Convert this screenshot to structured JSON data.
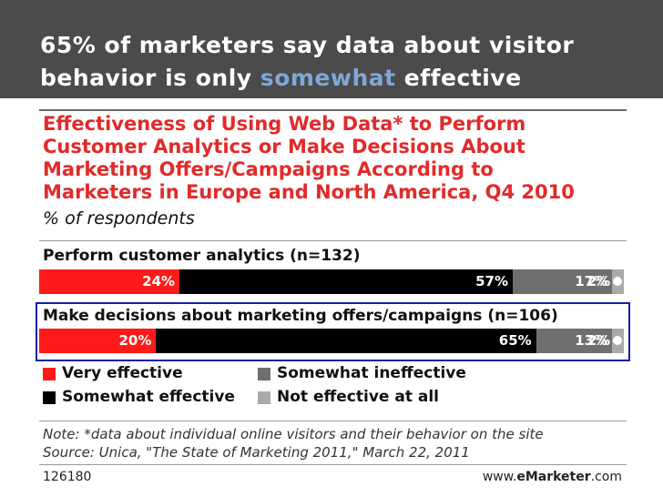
{
  "header": {
    "line1": "65% of marketers say data about visitor",
    "line2_prefix": "behavior is only ",
    "line2_highlight": "somewhat",
    "line2_suffix": " effective"
  },
  "chart_data": {
    "type": "bar",
    "stacked": true,
    "orientation": "horizontal",
    "title_lines": [
      "Effectiveness of Using Web Data* to Perform",
      "Customer Analytics or Make Decisions About",
      "Marketing Offers/Campaigns According to",
      "Marketers in Europe and North America, Q4 2010"
    ],
    "subtitle": "% of respondents",
    "categories": [
      "Perform customer analytics (n=132)",
      "Make decisions about marketing offers/campaigns (n=106)"
    ],
    "series": [
      {
        "name": "Very effective",
        "color": "#ff1a1a",
        "values": [
          24,
          20
        ]
      },
      {
        "name": "Somewhat effective",
        "color": "#000000",
        "values": [
          57,
          65
        ]
      },
      {
        "name": "Somewhat ineffective",
        "color": "#6f6f6f",
        "values": [
          17,
          13
        ]
      },
      {
        "name": "Not effective at all",
        "color": "#a9a9a9",
        "values": [
          2,
          2
        ]
      }
    ],
    "data_labels": [
      [
        "24%",
        "57%",
        "17%",
        "2%"
      ],
      [
        "20%",
        "65%",
        "13%",
        "2%"
      ]
    ],
    "highlighted_category": "Make decisions about marketing offers/campaigns (n=106)"
  },
  "notes": {
    "note": "Note: *data about individual online visitors and their behavior on the site",
    "source": "Source: Unica, \"The State of Marketing 2011,\" March 22, 2011"
  },
  "footer": {
    "id": "126180",
    "brand_prefix": "www.",
    "brand_bold": "eMarketer",
    "brand_suffix": ".com"
  },
  "colors": {
    "header_bg": "#4b4b4b",
    "title": "#e22a2a",
    "highlight_text": "#7fa7d8",
    "highlight_border": "#1a1aa8"
  }
}
